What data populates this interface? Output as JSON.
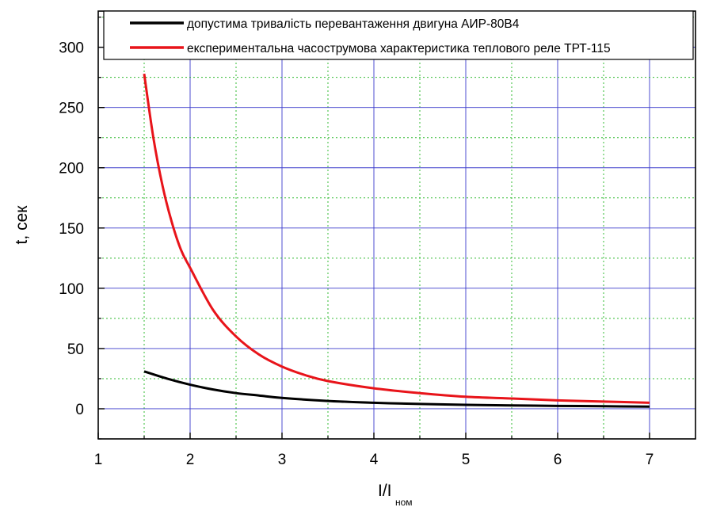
{
  "chart_data": {
    "type": "line",
    "title": "",
    "xlabel": "I/I",
    "xlabel_subscript": "ном",
    "ylabel": "t, сек",
    "xlim": [
      1,
      7.5
    ],
    "ylim": [
      -25,
      330
    ],
    "x_ticks": [
      1,
      2,
      3,
      4,
      5,
      6,
      7
    ],
    "y_ticks": [
      0,
      50,
      100,
      150,
      200,
      250,
      300
    ],
    "grid": true,
    "legend_position": "top-right",
    "series": [
      {
        "name": "допустима тривалість перевантаження двигуна АИР-80В4",
        "color": "#000000",
        "x": [
          1.5,
          1.75,
          2,
          2.25,
          2.5,
          2.75,
          3,
          3.5,
          4,
          4.5,
          5,
          5.5,
          6,
          6.5,
          7
        ],
        "y": [
          31,
          25,
          20,
          16,
          13,
          11,
          9,
          6.5,
          5,
          4,
          3.3,
          2.8,
          2.4,
          2.1,
          1.8
        ]
      },
      {
        "name": "експериментальна часострумова характеристика теплового реле ТРТ-115",
        "color": "#e8141a",
        "x": [
          1.5,
          1.6,
          1.7,
          1.8,
          1.9,
          2,
          2.25,
          2.5,
          2.75,
          3,
          3.25,
          3.5,
          4,
          4.5,
          5,
          5.5,
          6,
          6.5,
          7
        ],
        "y": [
          278,
          225,
          185,
          155,
          132,
          117,
          82,
          60,
          45,
          35,
          28,
          23,
          17,
          13,
          10,
          8.5,
          7,
          6,
          5
        ]
      }
    ]
  }
}
